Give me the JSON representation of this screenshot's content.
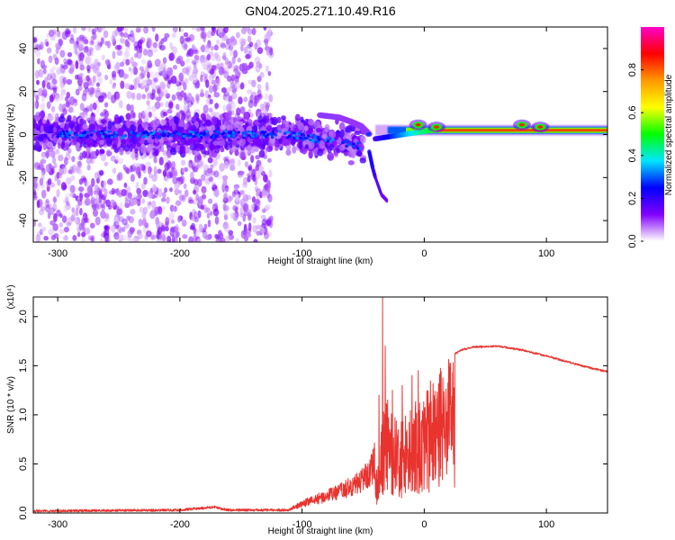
{
  "title": "GN04.2025.271.10.49.R16",
  "chart_data": [
    {
      "type": "heatmap",
      "name": "spectrogram",
      "xlabel": "Height of straight line (km)",
      "ylabel": "Frequency (Hz)",
      "xlim": [
        -320,
        150
      ],
      "ylim": [
        -50,
        50
      ],
      "xticks": [
        -300,
        -200,
        -100,
        0,
        100
      ],
      "yticks": [
        -40,
        -20,
        0,
        20,
        40
      ],
      "features": {
        "noise_region_x": [
          -320,
          -125
        ],
        "main_band_freq_hz": 0,
        "upper_branch": [
          [
            -85,
            9
          ],
          [
            -70,
            8
          ],
          [
            -60,
            6
          ],
          [
            -52,
            4
          ],
          [
            -45,
            0
          ]
        ],
        "lower_tail": [
          [
            -45,
            -8
          ],
          [
            -42,
            -16
          ],
          [
            -40,
            -20
          ],
          [
            -35,
            -28
          ],
          [
            -30,
            -31
          ]
        ],
        "stable_line_x": [
          -40,
          150
        ],
        "stable_line_freq_hz": 2,
        "peak_blobs_x": [
          -5,
          10,
          80,
          95
        ]
      }
    },
    {
      "type": "colorbar",
      "name": "amplitude-colorbar",
      "label": "Normalized spectral amplitude",
      "range": [
        0,
        1
      ],
      "ticks": [
        "0.0",
        "0.2",
        "0.4",
        "0.6",
        "0.8"
      ],
      "tick_values": [
        0,
        0.2,
        0.4,
        0.6,
        0.8
      ],
      "colors": [
        "#ffffff",
        "#8000ff",
        "#0000ff",
        "#00e5ff",
        "#00ff00",
        "#ffff00",
        "#ff9900",
        "#ff0000",
        "#ff00c8"
      ]
    },
    {
      "type": "line",
      "name": "snr",
      "xlabel": "Height of straight line (km)",
      "ylabel": "SNR (10 * v/v)",
      "multiplier": "(x10⁴)",
      "xlim": [
        -320,
        150
      ],
      "ylim": [
        0,
        2.2
      ],
      "xticks": [
        -300,
        -200,
        -100,
        0,
        100
      ],
      "yticks": [
        "0.0",
        "0.5",
        "1.0",
        "1.5",
        "2.0"
      ],
      "ytick_values": [
        0,
        0.5,
        1.0,
        1.5,
        2.0
      ],
      "color": "#e8332f",
      "envelope": {
        "x": [
          -320,
          -200,
          -172,
          -160,
          -110,
          -100,
          -85,
          -70,
          -55,
          -45,
          -38,
          -35,
          -32,
          -28,
          -22,
          -15,
          -8,
          0,
          10,
          20,
          30,
          40,
          60,
          80,
          100,
          120,
          135,
          150
        ],
        "y": [
          0.02,
          0.03,
          0.06,
          0.03,
          0.03,
          0.08,
          0.13,
          0.18,
          0.25,
          0.35,
          0.5,
          0.9,
          1.3,
          1.05,
          0.95,
          1.05,
          1.15,
          1.3,
          1.45,
          1.58,
          1.66,
          1.69,
          1.7,
          1.66,
          1.6,
          1.53,
          1.48,
          1.44
        ]
      },
      "spikes": [
        [
          -34,
          2.2
        ],
        [
          -32,
          1.7
        ],
        [
          -37,
          1.2
        ],
        [
          -30,
          1.15
        ],
        [
          -26,
          1.25
        ],
        [
          -18,
          1.3
        ],
        [
          -10,
          1.4
        ],
        [
          -5,
          1.45
        ]
      ]
    }
  ]
}
